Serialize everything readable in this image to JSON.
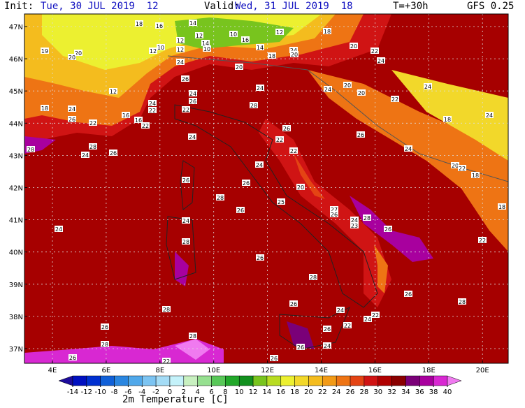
{
  "header": {
    "init_label": "Init:",
    "init_time": "Tue, 30 JUL 2019  12",
    "valid_label": "Valid:",
    "valid_time": "Wed, 31 JUL 2019  18",
    "lead": "T=+30h",
    "model": "GFS 0.25"
  },
  "map": {
    "lat_labels": [
      "47N",
      "46N",
      "45N",
      "44N",
      "43N",
      "42N",
      "41N",
      "40N",
      "39N",
      "38N",
      "37N"
    ],
    "lon_labels": [
      "4E",
      "6E",
      "8E",
      "10E",
      "12E",
      "14E",
      "16E",
      "18E",
      "20E"
    ],
    "station_values": [
      18,
      16,
      14,
      12,
      10,
      12,
      18,
      19,
      20,
      20,
      12,
      10,
      12,
      12,
      14,
      10,
      16,
      14,
      18,
      24,
      20,
      20,
      22,
      24,
      24,
      20,
      26,
      12,
      24,
      26,
      24,
      24,
      20,
      20,
      24,
      22,
      18,
      24,
      26,
      22,
      16,
      16,
      24,
      22,
      22,
      22,
      28,
      26,
      18,
      24,
      26,
      28,
      28,
      24,
      26,
      24,
      22,
      22,
      24,
      24,
      20,
      22,
      18,
      26,
      26,
      20,
      28,
      25,
      26,
      27,
      26,
      18,
      24,
      24,
      24,
      23,
      28,
      26,
      28,
      22,
      26,
      28,
      26,
      28,
      26,
      24,
      22,
      28,
      24,
      26,
      26,
      22,
      28,
      24,
      28,
      26,
      26,
      22,
      26
    ]
  },
  "colorbar": {
    "title": "2m Temperature [C]",
    "levels": [
      -14,
      -12,
      -10,
      -8,
      -6,
      -4,
      -2,
      0,
      2,
      4,
      6,
      8,
      10,
      12,
      14,
      16,
      18,
      20,
      22,
      24,
      26,
      28,
      30,
      32,
      34,
      36,
      38,
      40
    ],
    "colors": [
      "#1e0c9c",
      "#0010c0",
      "#0030d0",
      "#1060d8",
      "#2a86e0",
      "#50a8ea",
      "#7cc4f2",
      "#a4dcf6",
      "#c4f2fa",
      "#c8f0c0",
      "#96e090",
      "#58c858",
      "#22a82a",
      "#12901e",
      "#78c41e",
      "#b8dc22",
      "#ecf030",
      "#f2d82a",
      "#f4bc1e",
      "#f29a16",
      "#ee7414",
      "#e44414",
      "#d01414",
      "#b00000",
      "#8a0000",
      "#7a0078",
      "#a8009e",
      "#d828d2",
      "#f07af0"
    ]
  }
}
